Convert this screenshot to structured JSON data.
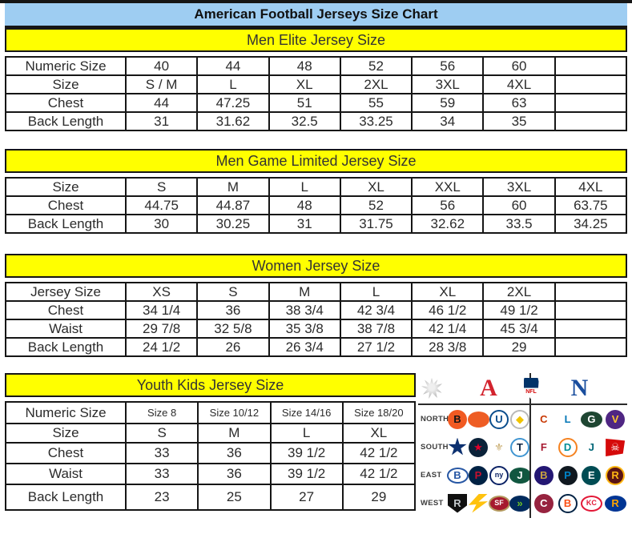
{
  "title": "American Football Jerseys Size Chart",
  "sections": [
    {
      "header": "Men Elite Jersey Size",
      "rows": [
        {
          "label": "Numeric Size",
          "values": [
            "40",
            "44",
            "48",
            "52",
            "56",
            "60",
            ""
          ]
        },
        {
          "label": "Size",
          "values": [
            "S / M",
            "L",
            "XL",
            "2XL",
            "3XL",
            "4XL",
            ""
          ]
        },
        {
          "label": "Chest",
          "values": [
            "44",
            "47.25",
            "51",
            "55",
            "59",
            "63",
            ""
          ]
        },
        {
          "label": "Back Length",
          "values": [
            "31",
            "31.62",
            "32.5",
            "33.25",
            "34",
            "35",
            ""
          ]
        }
      ]
    },
    {
      "header": "Men Game Limited Jersey Size",
      "rows": [
        {
          "label": "Size",
          "values": [
            "S",
            "M",
            "L",
            "XL",
            "XXL",
            "3XL",
            "4XL"
          ]
        },
        {
          "label": "Chest",
          "values": [
            "44.75",
            "44.87",
            "48",
            "52",
            "56",
            "60",
            "63.75"
          ]
        },
        {
          "label": "Back Length",
          "values": [
            "30",
            "30.25",
            "31",
            "31.75",
            "32.62",
            "33.5",
            "34.25"
          ]
        }
      ]
    },
    {
      "header": "Women Jersey Size",
      "rows": [
        {
          "label": "Jersey Size",
          "values": [
            "XS",
            "S",
            "M",
            "L",
            "XL",
            "2XL",
            ""
          ]
        },
        {
          "label": "Chest",
          "values": [
            "34 1/4",
            "36",
            "38 3/4",
            "42 3/4",
            "46 1/2",
            "49 1/2",
            ""
          ]
        },
        {
          "label": "Waist",
          "values": [
            "29 7/8",
            "32 5/8",
            "35 3/8",
            "38 7/8",
            "42 1/4",
            "45 3/4",
            ""
          ]
        },
        {
          "label": "Back Length",
          "values": [
            "24 1/2",
            "26",
            "26 3/4",
            "27 1/2",
            "28 3/8",
            "29",
            ""
          ]
        }
      ]
    },
    {
      "header": "Youth Kids Jersey Size",
      "rows": [
        {
          "label": "Numeric Size",
          "values": [
            "Size 8",
            "Size 10/12",
            "Size 14/16",
            "Size 18/20"
          ]
        },
        {
          "label": "Size",
          "values": [
            "S",
            "M",
            "L",
            "XL"
          ]
        },
        {
          "label": "Chest",
          "values": [
            "33",
            "36",
            "39 1/2",
            "42 1/2"
          ]
        },
        {
          "label": "Waist",
          "values": [
            "33",
            "36",
            "39 1/2",
            "42 1/2"
          ]
        },
        {
          "label": "Back Length",
          "values": [
            "23",
            "25",
            "27",
            "29"
          ]
        }
      ]
    }
  ],
  "colors": {
    "title_bar_bg": "#9ecdf2",
    "section_header_bg": "#ffff00",
    "border": "#161616",
    "afc_red": "#d3232e",
    "nfc_blue": "#1a4e9e"
  },
  "logo_panel": {
    "afc_letter": "A",
    "nfc_letter": "N",
    "nfl_shield_text": "NFL",
    "rows": [
      {
        "division": "NORTH",
        "afc": [
          {
            "name": "bengals",
            "shape": "circle",
            "bg": "#f15a22",
            "fg": "#141414",
            "glyph": "B"
          },
          {
            "name": "browns",
            "shape": "oval",
            "bg": "#ee5d24",
            "fg": "#ffffff",
            "glyph": ""
          },
          {
            "name": "colts",
            "shape": "circle",
            "bg": "#ffffff",
            "fg": "#0a4d8c",
            "bd": "#0a4d8c",
            "glyph": "U"
          },
          {
            "name": "steelers",
            "shape": "circle",
            "bg": "#ffffff",
            "fg": "#f1c400",
            "bd": "#b9b9b9",
            "glyph": "◆"
          }
        ],
        "nfc": [
          {
            "name": "bears",
            "shape": "circle",
            "bg": "#ffffff",
            "fg": "#c83803",
            "glyph": "C"
          },
          {
            "name": "lions",
            "shape": "circle",
            "bg": "#ffffff",
            "fg": "#0076b6",
            "glyph": "L"
          },
          {
            "name": "packers",
            "shape": "oval",
            "bg": "#1e4632",
            "fg": "#ffffff",
            "glyph": "G"
          },
          {
            "name": "vikings",
            "shape": "circle",
            "bg": "#4f2683",
            "fg": "#ffc62f",
            "glyph": "V"
          }
        ]
      },
      {
        "division": "SOUTH",
        "afc": [
          {
            "name": "cowboys",
            "shape": "star",
            "bg": "#0d3170",
            "fg": "#0d3170",
            "glyph": ""
          },
          {
            "name": "texans",
            "shape": "circle",
            "bg": "#0b2239",
            "fg": "#e4002b",
            "glyph": "★"
          },
          {
            "name": "saints",
            "shape": "circle",
            "bg": "#ffffff",
            "fg": "#c5a663",
            "glyph": "⚜"
          },
          {
            "name": "titans",
            "shape": "circle",
            "bg": "#ffffff",
            "fg": "#0c2340",
            "bd": "#4095d1",
            "glyph": "T"
          }
        ],
        "nfc": [
          {
            "name": "falcons",
            "shape": "circle",
            "bg": "#ffffff",
            "fg": "#a71930",
            "glyph": "F"
          },
          {
            "name": "dolphins",
            "shape": "circle",
            "bg": "#ffffff",
            "fg": "#008e97",
            "bd": "#f58220",
            "glyph": "D"
          },
          {
            "name": "jaguars",
            "shape": "circle",
            "bg": "#ffffff",
            "fg": "#006778",
            "glyph": "J"
          },
          {
            "name": "buccaneers",
            "shape": "flag",
            "bg": "#d50a0a",
            "fg": "#ffffff",
            "glyph": "☠"
          }
        ]
      },
      {
        "division": "EAST",
        "afc": [
          {
            "name": "bills",
            "shape": "oval",
            "bg": "#ffffff",
            "fg": "#2757a4",
            "bd": "#2757a4",
            "glyph": "B"
          },
          {
            "name": "patriots",
            "shape": "circle",
            "bg": "#002244",
            "fg": "#c8102e",
            "glyph": "P"
          },
          {
            "name": "giants",
            "shape": "circle",
            "bg": "#ffffff",
            "fg": "#0b2265",
            "bd": "#0b2265",
            "glyph": "ny"
          },
          {
            "name": "jets",
            "shape": "oval",
            "bg": "#115740",
            "fg": "#ffffff",
            "glyph": "J"
          }
        ],
        "nfc": [
          {
            "name": "ravens",
            "shape": "circle",
            "bg": "#241773",
            "fg": "#c8a340",
            "glyph": "B"
          },
          {
            "name": "panthers",
            "shape": "circle",
            "bg": "#101820",
            "fg": "#0085ca",
            "glyph": "P"
          },
          {
            "name": "eagles",
            "shape": "circle",
            "bg": "#004c54",
            "fg": "#ffffff",
            "glyph": "E"
          },
          {
            "name": "redskins",
            "shape": "circle",
            "bg": "#5a1414",
            "fg": "#ffb612",
            "bd": "#ffb612",
            "glyph": "R"
          }
        ]
      },
      {
        "division": "WEST",
        "afc": [
          {
            "name": "raiders",
            "shape": "shield",
            "bg": "#101010",
            "fg": "#c4c9cc",
            "glyph": "R"
          },
          {
            "name": "chargers",
            "shape": "bolt",
            "bg": "#ffc20e",
            "fg": "#ffc20e",
            "glyph": ""
          },
          {
            "name": "49ers",
            "shape": "oval",
            "bg": "#a6192e",
            "fg": "#ffffff",
            "bd": "#b3995d",
            "glyph": "SF"
          },
          {
            "name": "seahawks",
            "shape": "oval",
            "bg": "#002a5c",
            "fg": "#69be28",
            "glyph": "»"
          }
        ],
        "nfc": [
          {
            "name": "cardinals",
            "shape": "circle",
            "bg": "#97233f",
            "fg": "#ffffff",
            "glyph": "C"
          },
          {
            "name": "broncos",
            "shape": "circle",
            "bg": "#ffffff",
            "fg": "#fb4f14",
            "bd": "#002244",
            "glyph": "B"
          },
          {
            "name": "chiefs",
            "shape": "oval",
            "bg": "#ffffff",
            "fg": "#e31837",
            "bd": "#e31837",
            "glyph": "KC"
          },
          {
            "name": "rams",
            "shape": "oval",
            "bg": "#003594",
            "fg": "#ffa300",
            "glyph": "R"
          }
        ]
      }
    ]
  }
}
